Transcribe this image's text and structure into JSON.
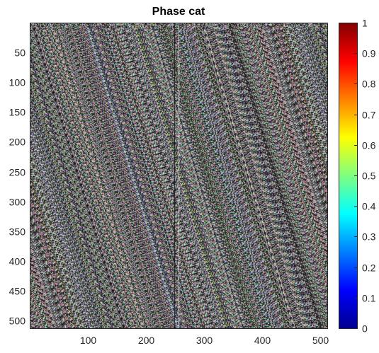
{
  "chart_data": {
    "type": "heatmap",
    "title": "Phase cat",
    "xlabel": "",
    "ylabel": "",
    "xlim": [
      0.5,
      512.5
    ],
    "ylim": [
      0.5,
      512.5
    ],
    "y_reversed": true,
    "x_ticks": [
      100,
      200,
      300,
      400,
      500
    ],
    "y_ticks": [
      50,
      100,
      150,
      200,
      250,
      300,
      350,
      400,
      450,
      500
    ],
    "x_tick_labels": [
      "100",
      "200",
      "300",
      "400",
      "500"
    ],
    "y_tick_labels": [
      "50",
      "100",
      "150",
      "200",
      "250",
      "300",
      "350",
      "400",
      "450",
      "500"
    ],
    "image_size": [
      512,
      512
    ],
    "content": "random-phase noise (RGB), visible seam near column 256",
    "seam_columns": [
      249,
      256
    ],
    "colorbar": {
      "colormap": "jet",
      "range": [
        0,
        1
      ],
      "ticks": [
        0,
        0.1,
        0.2,
        0.3,
        0.4,
        0.5,
        0.6,
        0.7,
        0.8,
        0.9,
        1
      ],
      "tick_labels": [
        "0",
        "0.1",
        "0.2",
        "0.3",
        "0.4",
        "0.5",
        "0.6",
        "0.7",
        "0.8",
        "0.9",
        "1"
      ]
    }
  }
}
